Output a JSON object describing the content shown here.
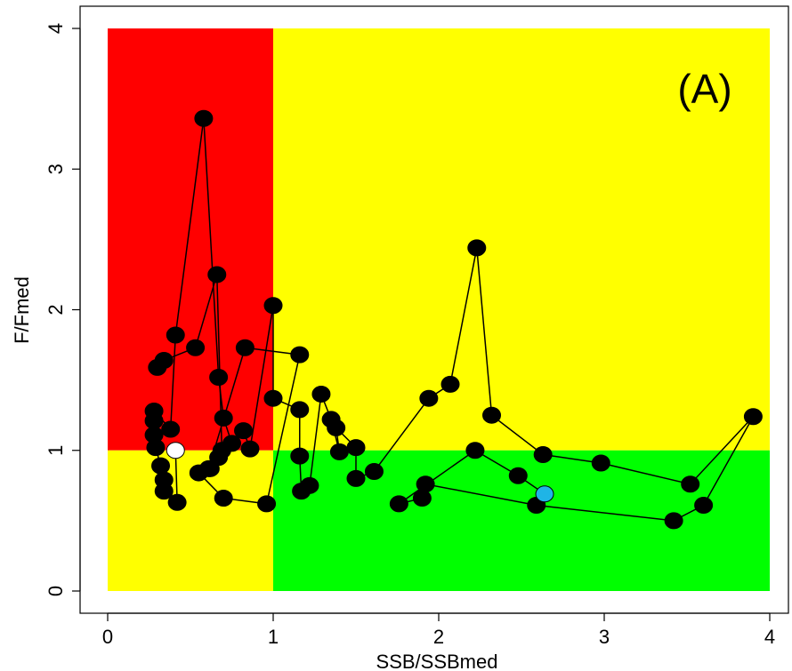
{
  "chart_data": {
    "type": "scatter",
    "title": "",
    "panel_label": "(A)",
    "xlabel": "SSB/SSBmed",
    "ylabel": "F/Fmed",
    "xlim": [
      0,
      4
    ],
    "ylim": [
      0,
      4
    ],
    "xticks": [
      0,
      1,
      2,
      3,
      4
    ],
    "yticks": [
      0,
      1,
      2,
      3,
      4
    ],
    "xtick_labels": [
      "0",
      "1",
      "2",
      "3",
      "4"
    ],
    "ytick_labels": [
      "0",
      "1",
      "2",
      "3",
      "4"
    ],
    "grid": false,
    "regions": [
      {
        "x": [
          0,
          1
        ],
        "y": [
          1,
          4
        ],
        "color": "#ff0000"
      },
      {
        "x": [
          1,
          4
        ],
        "y": [
          1,
          4
        ],
        "color": "#ffff00"
      },
      {
        "x": [
          0,
          1
        ],
        "y": [
          0,
          1
        ],
        "color": "#ffff00"
      },
      {
        "x": [
          1,
          4
        ],
        "y": [
          0,
          1
        ],
        "color": "#00ff00"
      }
    ],
    "series": [
      {
        "connected": true,
        "marker_color": "#000000",
        "first_point_color": "#ffffff",
        "last_point_color": "#1fb4e6",
        "points": [
          [
            0.41,
            1.0
          ],
          [
            0.42,
            0.63
          ],
          [
            0.34,
            0.71
          ],
          [
            0.34,
            0.79
          ],
          [
            0.32,
            0.89
          ],
          [
            0.29,
            1.02
          ],
          [
            0.28,
            1.11
          ],
          [
            0.28,
            1.21
          ],
          [
            0.28,
            1.28
          ],
          [
            0.38,
            1.15
          ],
          [
            0.41,
            1.82
          ],
          [
            0.58,
            3.36
          ],
          [
            0.67,
            1.52
          ],
          [
            0.7,
            1.23
          ],
          [
            0.75,
            1.05
          ],
          [
            0.82,
            1.14
          ],
          [
            0.86,
            1.01
          ],
          [
            1.0,
            2.03
          ],
          [
            1.0,
            1.37
          ],
          [
            1.16,
            1.29
          ],
          [
            1.16,
            0.96
          ],
          [
            1.17,
            0.71
          ],
          [
            1.22,
            0.75
          ],
          [
            1.29,
            1.4
          ],
          [
            1.35,
            1.22
          ],
          [
            1.4,
            0.99
          ],
          [
            1.38,
            1.16
          ],
          [
            1.5,
            1.02
          ],
          [
            1.5,
            0.8
          ],
          [
            1.61,
            0.85
          ],
          [
            1.94,
            1.37
          ],
          [
            2.07,
            1.47
          ],
          [
            2.23,
            2.44
          ],
          [
            2.32,
            1.25
          ],
          [
            2.63,
            0.97
          ],
          [
            2.98,
            0.91
          ],
          [
            3.52,
            0.76
          ],
          [
            3.9,
            1.24
          ],
          [
            3.6,
            0.61
          ],
          [
            3.42,
            0.5
          ],
          [
            2.59,
            0.61
          ],
          [
            1.92,
            0.76
          ],
          [
            1.9,
            0.66
          ],
          [
            1.76,
            0.62
          ],
          [
            2.22,
            1.0
          ],
          [
            2.48,
            0.82
          ],
          [
            2.64,
            0.69
          ]
        ]
      }
    ],
    "decoration_series": [
      {
        "connected": true,
        "marker_color": "#000000",
        "points": [
          [
            0.3,
            1.59
          ],
          [
            0.34,
            1.64
          ],
          [
            0.53,
            1.73
          ],
          [
            0.66,
            2.25
          ],
          [
            0.69,
            1.0
          ],
          [
            0.67,
            0.95
          ],
          [
            0.62,
            0.87
          ],
          [
            0.55,
            0.84
          ],
          [
            0.7,
            0.66
          ],
          [
            0.96,
            0.62
          ],
          [
            1.16,
            1.68
          ],
          [
            0.83,
            1.73
          ],
          [
            0.61,
            0.87
          ]
        ]
      }
    ]
  }
}
